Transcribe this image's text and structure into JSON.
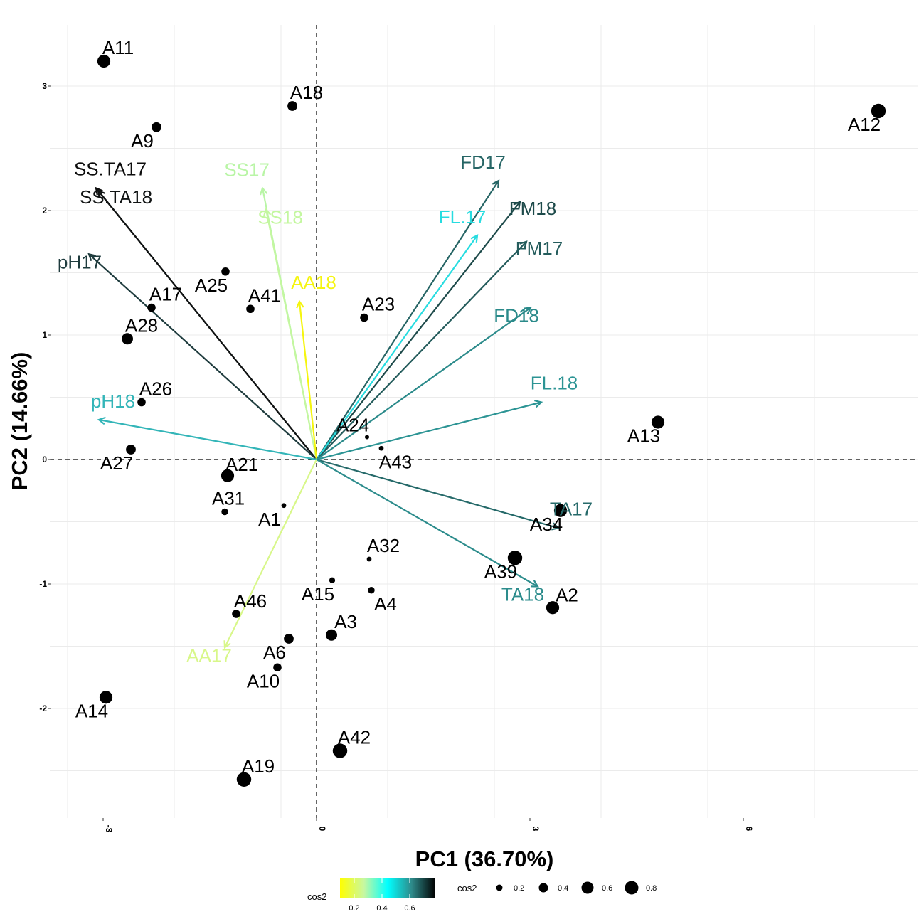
{
  "chart_data": {
    "type": "scatter",
    "subtype": "pca-biplot",
    "title": "",
    "xlabel": "PC1 (36.70%)",
    "ylabel": "PC2 (14.66%)",
    "xlim": [
      -3.75,
      8.45
    ],
    "ylim": [
      -2.88,
      3.49
    ],
    "xticks": [
      -3,
      0,
      3,
      6
    ],
    "yticks": [
      -2,
      -1,
      0,
      1,
      2,
      3
    ],
    "grid": true,
    "reference_lines": {
      "x": 0,
      "y": 0,
      "style": "dashed"
    },
    "individuals": [
      {
        "label": "A11",
        "x": -2.99,
        "y": 3.2,
        "cos2": 0.6
      },
      {
        "label": "A18",
        "x": -0.34,
        "y": 2.84,
        "cos2": 0.4
      },
      {
        "label": "A9",
        "x": -2.25,
        "y": 2.67,
        "cos2": 0.4
      },
      {
        "label": "A12",
        "x": 7.9,
        "y": 2.8,
        "cos2": 0.7
      },
      {
        "label": "A25",
        "x": -1.28,
        "y": 1.51,
        "cos2": 0.3
      },
      {
        "label": "A41",
        "x": -0.93,
        "y": 1.21,
        "cos2": 0.3
      },
      {
        "label": "A23",
        "x": 0.67,
        "y": 1.14,
        "cos2": 0.3
      },
      {
        "label": "A17",
        "x": -2.32,
        "y": 1.22,
        "cos2": 0.3
      },
      {
        "label": "A28",
        "x": -2.66,
        "y": 0.97,
        "cos2": 0.5
      },
      {
        "label": "A26",
        "x": -2.46,
        "y": 0.46,
        "cos2": 0.3
      },
      {
        "label": "A24",
        "x": 0.71,
        "y": 0.18,
        "cos2": 0.05
      },
      {
        "label": "A43",
        "x": 0.91,
        "y": 0.09,
        "cos2": 0.08
      },
      {
        "label": "A27",
        "x": -2.61,
        "y": 0.08,
        "cos2": 0.4
      },
      {
        "label": "A13",
        "x": 4.8,
        "y": 0.3,
        "cos2": 0.6
      },
      {
        "label": "A21",
        "x": -1.25,
        "y": -0.13,
        "cos2": 0.6
      },
      {
        "label": "A31",
        "x": -1.29,
        "y": -0.42,
        "cos2": 0.2
      },
      {
        "label": "A1",
        "x": -0.46,
        "y": -0.37,
        "cos2": 0.08
      },
      {
        "label": "A34",
        "x": 3.43,
        "y": -0.41,
        "cos2": 0.6
      },
      {
        "label": "A32",
        "x": 0.74,
        "y": -0.8,
        "cos2": 0.08
      },
      {
        "label": "A39",
        "x": 2.79,
        "y": -0.79,
        "cos2": 0.7
      },
      {
        "label": "A15",
        "x": 0.22,
        "y": -0.97,
        "cos2": 0.15
      },
      {
        "label": "A4",
        "x": 0.77,
        "y": -1.05,
        "cos2": 0.2
      },
      {
        "label": "A2",
        "x": 3.32,
        "y": -1.19,
        "cos2": 0.6
      },
      {
        "label": "A46",
        "x": -1.13,
        "y": -1.24,
        "cos2": 0.3
      },
      {
        "label": "A3",
        "x": 0.21,
        "y": -1.41,
        "cos2": 0.5
      },
      {
        "label": "A6",
        "x": -0.39,
        "y": -1.44,
        "cos2": 0.4
      },
      {
        "label": "A10",
        "x": -0.55,
        "y": -1.67,
        "cos2": 0.3
      },
      {
        "label": "A14",
        "x": -2.96,
        "y": -1.91,
        "cos2": 0.6
      },
      {
        "label": "A42",
        "x": 0.33,
        "y": -2.34,
        "cos2": 0.7
      },
      {
        "label": "A19",
        "x": -1.02,
        "y": -2.57,
        "cos2": 0.7
      }
    ],
    "variables": [
      {
        "label": "SS.TA17",
        "x": -3.1,
        "y": 2.18,
        "color": "#0d0d0d"
      },
      {
        "label": "SS.TA18",
        "x": -3.07,
        "y": 2.16,
        "color": "#111414"
      },
      {
        "label": "SS17",
        "x": -0.76,
        "y": 2.18,
        "color": "#b9f5a6"
      },
      {
        "label": "SS18",
        "x": -0.71,
        "y": 2.01,
        "color": "#c4f7a0"
      },
      {
        "label": "pH17",
        "x": -3.2,
        "y": 1.65,
        "color": "#1e3b3d"
      },
      {
        "label": "AA18",
        "x": -0.24,
        "y": 1.27,
        "color": "#f5f50f"
      },
      {
        "label": "FD17",
        "x": 2.56,
        "y": 2.24,
        "color": "#266565"
      },
      {
        "label": "FM18",
        "x": 2.86,
        "y": 2.07,
        "color": "#1d4a4a"
      },
      {
        "label": "FL.17",
        "x": 2.26,
        "y": 1.8,
        "color": "#27dce0"
      },
      {
        "label": "FM17",
        "x": 2.95,
        "y": 1.75,
        "color": "#245c5c"
      },
      {
        "label": "FD18",
        "x": 3.01,
        "y": 1.22,
        "color": "#2a8a8a"
      },
      {
        "label": "FL.18",
        "x": 3.16,
        "y": 0.46,
        "color": "#2c9494"
      },
      {
        "label": "pH18",
        "x": -3.06,
        "y": 0.32,
        "color": "#33b5b8"
      },
      {
        "label": "TA17",
        "x": 3.4,
        "y": -0.55,
        "color": "#266a6a"
      },
      {
        "label": "TA18",
        "x": 3.11,
        "y": -1.02,
        "color": "#2c8c8c"
      },
      {
        "label": "AA17",
        "x": -1.29,
        "y": -1.51,
        "color": "#d8f78a"
      }
    ],
    "legends": {
      "color": {
        "title": "cos2",
        "type": "gradient",
        "stops": [
          "#ffff00",
          "#c8f7a0",
          "#00ffff",
          "#2e8b8b",
          "#000000"
        ],
        "breaks": [
          "0.2",
          "0.4",
          "0.6"
        ]
      },
      "size": {
        "title": "cos2",
        "breaks": [
          "0.2",
          "0.4",
          "0.6",
          "0.8"
        ]
      },
      "placement": "bottom"
    }
  }
}
